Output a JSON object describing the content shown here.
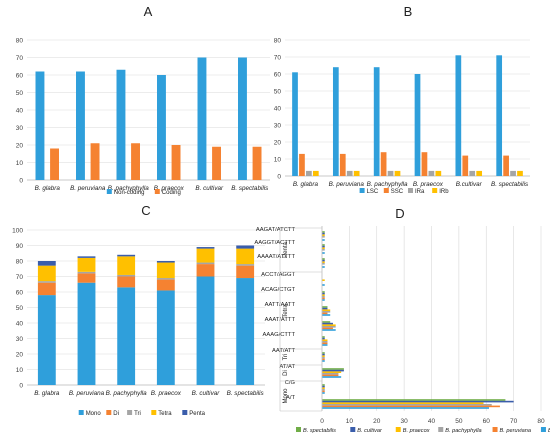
{
  "colors": {
    "blue": "#2f9fdb",
    "orange": "#f58231",
    "gray": "#a5a5a5",
    "yellow": "#ffc000",
    "navy": "#3a5dab",
    "green": "#70ad47",
    "grid": "#d9d9d9",
    "axis_text": "#404040"
  },
  "chart_data": [
    {
      "id": "A",
      "type": "bar",
      "title": "A",
      "categories": [
        "B. glabra",
        "B. peruviana",
        "B. pachyphylla",
        "B. praecox",
        "B. cultivar",
        "B. spectabilis"
      ],
      "series": [
        {
          "name": "Non-coding",
          "color": "#2f9fdb",
          "values": [
            62,
            62,
            63,
            60,
            70,
            70
          ]
        },
        {
          "name": "Coding",
          "color": "#f58231",
          "values": [
            18,
            21,
            21,
            20,
            19,
            19
          ]
        }
      ],
      "ylim": [
        0,
        80
      ],
      "yticks": [
        "0",
        "10",
        "20",
        "30",
        "40",
        "50",
        "60",
        "70",
        "80"
      ],
      "grid": true,
      "legend": "bottom"
    },
    {
      "id": "B",
      "type": "bar",
      "title": "B",
      "categories": [
        "B. glabra",
        "B. peruviana",
        "B. pachyphylla",
        "B. praecox",
        "B.cultivar",
        "B. spectabilis"
      ],
      "series": [
        {
          "name": "LSC",
          "color": "#2f9fdb",
          "values": [
            61,
            64,
            64,
            60,
            71,
            71
          ]
        },
        {
          "name": "SSC",
          "color": "#f58231",
          "values": [
            13,
            13,
            14,
            14,
            12,
            12
          ]
        },
        {
          "name": "IRa",
          "color": "#a5a5a5",
          "values": [
            3,
            3,
            3,
            3,
            3,
            3
          ]
        },
        {
          "name": "IRb",
          "color": "#ffc000",
          "values": [
            3,
            3,
            3,
            3,
            3,
            3
          ]
        }
      ],
      "ylim": [
        0,
        80
      ],
      "yticks": [
        "0",
        "10",
        "20",
        "30",
        "40",
        "50",
        "60",
        "70",
        "80"
      ],
      "grid": true,
      "legend": "bottom"
    },
    {
      "id": "C",
      "type": "bar",
      "stacked": true,
      "title": "C",
      "categories": [
        "B. glabra",
        "B. peruviana",
        "B. pachyphylla",
        "B. praecox",
        "B. cultivar",
        "B. spectabilis"
      ],
      "series": [
        {
          "name": "Mono",
          "color": "#2f9fdb",
          "values": [
            58,
            66,
            63,
            61,
            70,
            69
          ]
        },
        {
          "name": "Di",
          "color": "#f58231",
          "values": [
            8,
            6,
            7,
            7,
            8,
            8
          ]
        },
        {
          "name": "Tri",
          "color": "#a5a5a5",
          "values": [
            1,
            1,
            1,
            1,
            1,
            1
          ]
        },
        {
          "name": "Tetra",
          "color": "#ffc000",
          "values": [
            10,
            9,
            12,
            10,
            9,
            10
          ]
        },
        {
          "name": "Penta",
          "color": "#3a5dab",
          "values": [
            3,
            1,
            1,
            1,
            1,
            2
          ]
        }
      ],
      "ylim": [
        0,
        100
      ],
      "yticks": [
        "0",
        "10",
        "20",
        "30",
        "40",
        "50",
        "60",
        "70",
        "80",
        "90",
        "100"
      ],
      "grid": true,
      "legend": "bottom"
    },
    {
      "id": "D",
      "type": "bar",
      "orientation": "horizontal",
      "title": "D",
      "categories": [
        "AAGAT/ATCTT",
        "AAGGT/ACTTT",
        "AAAAT/ATTTT",
        "ACCT/AGGT",
        "ACAG/CTGT",
        "AATT/AATT",
        "AAAT/ATTT",
        "AAAG/CTTT",
        "AAT/ATT",
        "AT/AT",
        "C/G",
        "A/T"
      ],
      "groups": [
        {
          "label": "Penta",
          "from": 0,
          "to": 2
        },
        {
          "label": "Tetra",
          "from": 3,
          "to": 7
        },
        {
          "label": "Tri",
          "from": 8,
          "to": 8
        },
        {
          "label": "Di",
          "from": 9,
          "to": 9
        },
        {
          "label": "Mono",
          "from": 10,
          "to": 11
        }
      ],
      "series": [
        {
          "name": "B. spectabilis",
          "color": "#70ad47",
          "values": [
            1,
            1,
            1,
            0,
            1,
            2,
            3,
            1,
            1,
            8,
            1,
            67
          ]
        },
        {
          "name": "B. cultivar",
          "color": "#3a5dab",
          "values": [
            1,
            1,
            1,
            0,
            1,
            2,
            4,
            1,
            1,
            8,
            1,
            70
          ]
        },
        {
          "name": "B. praecox",
          "color": "#ffc000",
          "values": [
            1,
            1,
            1,
            1,
            1,
            3,
            5,
            2,
            1,
            7,
            1,
            59
          ]
        },
        {
          "name": "B. pachyphylla",
          "color": "#a5a5a5",
          "values": [
            1,
            1,
            1,
            0,
            1,
            3,
            5,
            2,
            1,
            6,
            1,
            62
          ]
        },
        {
          "name": "B. peruviana",
          "color": "#f58231",
          "values": [
            0,
            0,
            0,
            0,
            1,
            2,
            4,
            2,
            1,
            6,
            1,
            65
          ]
        },
        {
          "name": "B. glabra",
          "color": "#2f9fdb",
          "values": [
            1,
            1,
            1,
            1,
            1,
            3,
            5,
            2,
            1,
            7,
            1,
            61
          ]
        }
      ],
      "xlim": [
        0,
        80
      ],
      "xticks": [
        "0",
        "10",
        "20",
        "30",
        "40",
        "50",
        "60",
        "70",
        "80"
      ],
      "grid": true,
      "legend": "bottom"
    }
  ]
}
